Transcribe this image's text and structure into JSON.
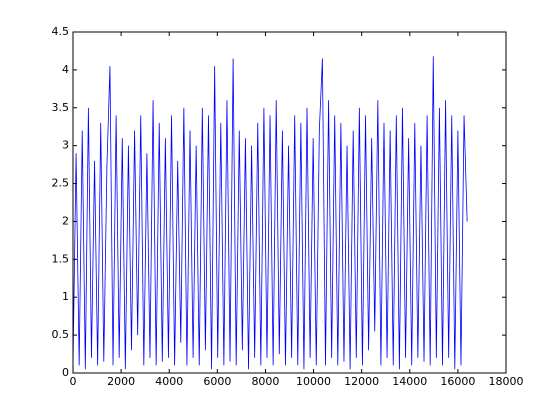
{
  "chart_data": {
    "type": "line",
    "x": [
      0,
      128,
      256,
      384,
      512,
      640,
      768,
      896,
      1024,
      1152,
      1280,
      1408,
      1536,
      1664,
      1792,
      1920,
      2048,
      2176,
      2304,
      2432,
      2560,
      2688,
      2816,
      2944,
      3072,
      3200,
      3328,
      3456,
      3584,
      3712,
      3840,
      3968,
      4096,
      4224,
      4352,
      4480,
      4608,
      4736,
      4864,
      4992,
      5120,
      5248,
      5376,
      5504,
      5632,
      5760,
      5888,
      6016,
      6144,
      6272,
      6400,
      6528,
      6656,
      6784,
      6912,
      7040,
      7168,
      7296,
      7424,
      7552,
      7680,
      7808,
      7936,
      8064,
      8192,
      8320,
      8448,
      8576,
      8704,
      8832,
      8960,
      9088,
      9216,
      9344,
      9472,
      9600,
      9728,
      9856,
      9984,
      10112,
      10240,
      10368,
      10496,
      10624,
      10752,
      10880,
      11008,
      11136,
      11264,
      11392,
      11520,
      11648,
      11776,
      11904,
      12032,
      12160,
      12288,
      12416,
      12544,
      12672,
      12800,
      12928,
      13056,
      13184,
      13312,
      13440,
      13568,
      13696,
      13824,
      13952,
      14080,
      14208,
      14336,
      14464,
      14592,
      14720,
      14848,
      14976,
      15104,
      15232,
      15360,
      15488,
      15616,
      15744,
      15872,
      16000,
      16128,
      16256,
      16384
    ],
    "series": [
      {
        "color": "#0000ff",
        "values": [
          0.1,
          2.9,
          0.1,
          3.2,
          0.05,
          3.5,
          0.2,
          2.8,
          0.1,
          3.3,
          0.15,
          2.7,
          4.05,
          0.1,
          3.4,
          0.2,
          3.1,
          0.05,
          3.0,
          0.3,
          3.2,
          0.5,
          3.4,
          0.1,
          2.9,
          0.2,
          3.6,
          0.1,
          3.3,
          0.15,
          3.1,
          0.2,
          3.4,
          0.1,
          2.8,
          0.4,
          3.5,
          0.1,
          3.2,
          0.2,
          3.0,
          0.1,
          3.5,
          0.3,
          3.4,
          0.05,
          4.05,
          0.2,
          3.3,
          0.1,
          3.6,
          0.15,
          4.15,
          0.1,
          3.2,
          0.3,
          3.1,
          0.05,
          3.0,
          0.2,
          3.3,
          0.1,
          3.5,
          0.2,
          3.4,
          0.1,
          3.6,
          0.25,
          3.2,
          0.1,
          3.0,
          0.2,
          3.4,
          0.1,
          3.3,
          0.05,
          3.5,
          0.2,
          3.1,
          0.1,
          3.2,
          4.15,
          0.1,
          3.6,
          0.2,
          3.4,
          0.1,
          3.3,
          0.15,
          3.0,
          0.05,
          3.2,
          0.2,
          3.5,
          0.1,
          3.4,
          0.3,
          3.1,
          0.55,
          3.6,
          0.1,
          3.3,
          0.2,
          3.2,
          0.1,
          3.4,
          0.05,
          3.5,
          0.2,
          3.1,
          0.1,
          3.3,
          0.2,
          3.0,
          0.15,
          3.4,
          0.1,
          4.18,
          0.2,
          3.5,
          0.1,
          3.6,
          0.2,
          3.4,
          0.05,
          3.2,
          0.1,
          3.4,
          2.0
        ]
      }
    ],
    "xlim": [
      0,
      18000
    ],
    "xticks": [
      0,
      2000,
      4000,
      6000,
      8000,
      10000,
      12000,
      14000,
      16000,
      18000
    ],
    "ylim": [
      0,
      4.5
    ],
    "yticks": [
      0,
      0.5,
      1,
      1.5,
      2,
      2.5,
      3,
      3.5,
      4,
      4.5
    ],
    "grid": false
  }
}
